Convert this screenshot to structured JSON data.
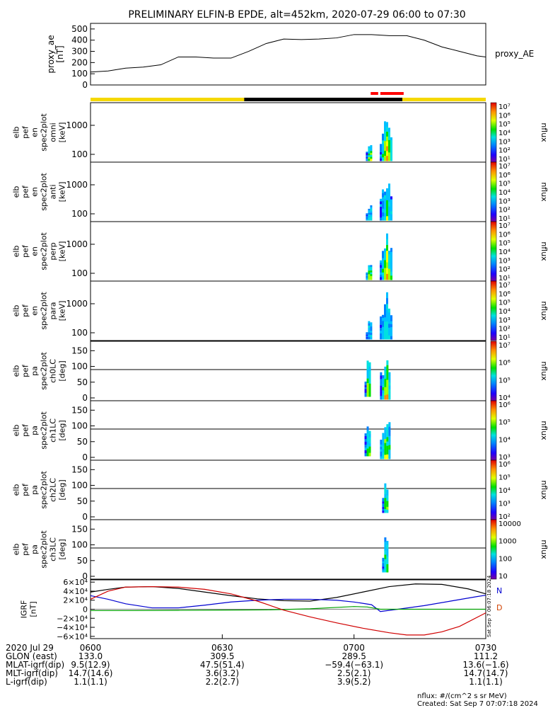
{
  "title": "PRELIMINARY ELFIN-B EPDE, alt=452km, 2020-07-29 06:00 to 07:30",
  "chart_data": [
    {
      "type": "line",
      "series_label": "proxy_AE",
      "ylabel": [
        "proxy_ae",
        "[nT]"
      ],
      "ylim": [
        0,
        550
      ],
      "yticks": [
        "500",
        "400",
        "300",
        "200",
        "100",
        "0"
      ],
      "ytick_values": [
        500,
        400,
        300,
        200,
        100,
        0
      ],
      "x_minutes": [
        0,
        4,
        8,
        12,
        16,
        20,
        24,
        28,
        32,
        36,
        40,
        44,
        48,
        52,
        56,
        60,
        64,
        68,
        72,
        76,
        80,
        84,
        88,
        90
      ],
      "values": [
        115,
        125,
        150,
        160,
        180,
        250,
        250,
        240,
        240,
        300,
        370,
        410,
        405,
        410,
        420,
        450,
        450,
        440,
        440,
        400,
        340,
        300,
        260,
        250
      ]
    },
    {
      "type": "heatmap",
      "ylabel": [
        "elb",
        "pef",
        "en",
        "spec2plot",
        "omni",
        "[keV]"
      ],
      "yticks": [
        "1000",
        "100"
      ],
      "colorbar_ticks": [
        "10⁷",
        "10⁶",
        "10⁵",
        "10⁴",
        "10³",
        "10²",
        "10¹"
      ],
      "colorbar_label": "nflux"
    },
    {
      "type": "heatmap",
      "ylabel": [
        "elb",
        "pef",
        "en",
        "spec2plot",
        "anti",
        "[keV]"
      ],
      "yticks": [
        "1000",
        "100"
      ],
      "colorbar_ticks": [
        "10⁷",
        "10⁶",
        "10⁵",
        "10⁴",
        "10³",
        "10²",
        "10¹"
      ],
      "colorbar_label": "nflux"
    },
    {
      "type": "heatmap",
      "ylabel": [
        "elb",
        "pef",
        "en",
        "spec2plot",
        "perp",
        "[keV]"
      ],
      "yticks": [
        "1000",
        "100"
      ],
      "colorbar_ticks": [
        "10⁷",
        "10⁶",
        "10⁵",
        "10⁴",
        "10³",
        "10²",
        "10¹"
      ],
      "colorbar_label": "nflux"
    },
    {
      "type": "heatmap",
      "ylabel": [
        "elb",
        "pef",
        "en",
        "spec2plot",
        "para",
        "[keV]"
      ],
      "yticks": [
        "1000",
        "100"
      ],
      "colorbar_ticks": [
        "10⁷",
        "10⁶",
        "10⁵",
        "10⁴",
        "10³",
        "10²",
        "10¹"
      ],
      "colorbar_label": "nflux"
    },
    {
      "type": "heatmap",
      "ylabel": [
        "elb",
        "pef",
        "pa",
        "spec2plot",
        "ch0LC",
        "[deg]"
      ],
      "yticks": [
        "150",
        "100",
        "50",
        "0"
      ],
      "colorbar_ticks": [
        "10⁷",
        "10⁶",
        "10⁵",
        "10⁴"
      ],
      "colorbar_label": "nflux"
    },
    {
      "type": "heatmap",
      "ylabel": [
        "elb",
        "pef",
        "pa",
        "spec2plot",
        "ch1LC",
        "[deg]"
      ],
      "yticks": [
        "150",
        "100",
        "50",
        "0"
      ],
      "colorbar_ticks": [
        "10⁶",
        "10⁵",
        "10⁴",
        "10³"
      ],
      "colorbar_label": "nflux"
    },
    {
      "type": "heatmap",
      "ylabel": [
        "elb",
        "pef",
        "pa",
        "spec2plot",
        "ch2LC",
        "[deg]"
      ],
      "yticks": [
        "150",
        "100",
        "50",
        "0"
      ],
      "colorbar_ticks": [
        "10⁶",
        "10⁵",
        "10⁴",
        "10³",
        "10²"
      ],
      "colorbar_label": "nflux"
    },
    {
      "type": "heatmap",
      "ylabel": [
        "elb",
        "pef",
        "pa",
        "spec2plot",
        "ch3LC",
        "[deg]"
      ],
      "yticks": [
        "150",
        "100",
        "50",
        "0"
      ],
      "colorbar_ticks": [
        "10000",
        "1000",
        "100",
        "10"
      ],
      "colorbar_label": "nflux"
    },
    {
      "type": "line",
      "ylabel": [
        "IGRF",
        "[nT]"
      ],
      "ylim": [
        -65000,
        65000
      ],
      "yticks": [
        "6×10⁴",
        "4×10⁴",
        "2×10⁴",
        "0",
        "−2×10⁴",
        "−4×10⁴",
        "−6×10⁴"
      ],
      "ytick_values": [
        60000,
        40000,
        20000,
        0,
        -20000,
        -40000,
        -60000
      ],
      "legend": [
        {
          "label": "N",
          "color": "#0000d0"
        },
        {
          "label": "D",
          "color": "#d04000"
        }
      ],
      "series": [
        {
          "color": "#000000",
          "x_minutes": [
            0,
            4,
            8,
            14,
            20,
            26,
            32,
            38,
            44,
            50,
            56,
            62,
            68,
            74,
            80,
            86,
            90
          ],
          "values": [
            38000,
            44000,
            49000,
            50000,
            46000,
            38000,
            30000,
            23000,
            19000,
            18000,
            26000,
            38000,
            50000,
            56000,
            55000,
            45000,
            34000
          ]
        },
        {
          "color": "#0000d0",
          "x_minutes": [
            0,
            4,
            8,
            14,
            20,
            26,
            32,
            38,
            44,
            50,
            56,
            60,
            64,
            66,
            70,
            76,
            82,
            88,
            90
          ],
          "values": [
            30000,
            22000,
            12000,
            3000,
            3000,
            9000,
            16000,
            20000,
            22000,
            22000,
            20000,
            16000,
            10000,
            -5000,
            0,
            8000,
            18000,
            28000,
            31000
          ]
        },
        {
          "color": "#00a000",
          "x_minutes": [
            0,
            10,
            20,
            30,
            40,
            50,
            56,
            60,
            63,
            66,
            70,
            80,
            90
          ],
          "values": [
            -3000,
            -3000,
            -2500,
            -2000,
            -1500,
            1000,
            4000,
            6000,
            5000,
            0,
            0,
            0,
            0
          ]
        },
        {
          "color": "#d00000",
          "x_minutes": [
            0,
            4,
            8,
            14,
            20,
            26,
            32,
            38,
            44,
            50,
            56,
            62,
            68,
            72,
            76,
            80,
            84,
            90
          ],
          "values": [
            22000,
            40000,
            49000,
            50000,
            49000,
            44000,
            34000,
            18000,
            -2000,
            -17000,
            -30000,
            -42000,
            -52000,
            -57000,
            -57000,
            -50000,
            -38000,
            -8000
          ]
        }
      ]
    }
  ],
  "proxy_label": "proxy_AE",
  "time_axis": {
    "label": "2020 Jul 29",
    "ticks": [
      "0600",
      "0630",
      "0700",
      "0730"
    ],
    "tick_minutes": [
      0,
      30,
      60,
      90
    ]
  },
  "position_rows": [
    {
      "label": "GLON (east)",
      "values": [
        "133.0",
        "309.5",
        "289.5",
        "111.2"
      ]
    },
    {
      "label": "MLAT-igrf(dip)",
      "values": [
        "9.5(12.9)",
        "47.5(51.4)",
        "−59.4(−63.1)",
        "13.6(−1.6)"
      ]
    },
    {
      "label": "MLT-igrf(dip)",
      "values": [
        "14.7(14.6)",
        "3.6(3.2)",
        "2.5(2.1)",
        "14.7(14.7)"
      ]
    },
    {
      "label": "L-igrf(dip)",
      "values": [
        "1.1(1.1)",
        "2.2(2.7)",
        "3.9(5.2)",
        "1.1(1.1)"
      ]
    }
  ],
  "side_stamp": "Sat Sep  7 06:07:18 2024",
  "footer": {
    "units": "nflux: #/(cm^2 s sr MeV)",
    "created": "Created: Sat Sep  7 07:07:18 2024"
  },
  "colors": {
    "sunlight_bar": "#f5d800",
    "shadow_bar": "#000000",
    "science_bar": "#ff0000"
  }
}
